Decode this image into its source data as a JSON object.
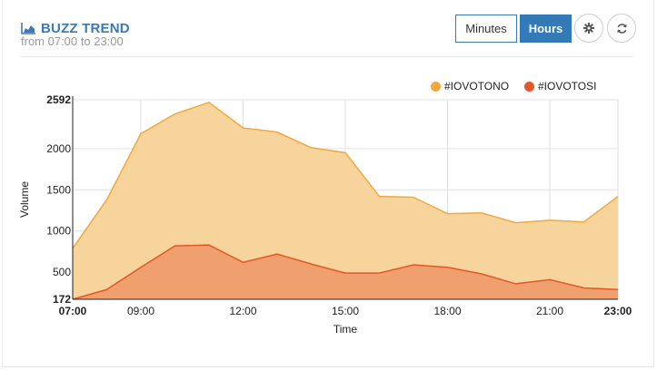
{
  "header": {
    "title": "BUZZ TREND",
    "subtitle": "from 07:00 to 23:00"
  },
  "toolbar": {
    "minutes_label": "Minutes",
    "hours_label": "Hours",
    "active": "Hours"
  },
  "colors": {
    "accent": "#337ab7",
    "series_no": "#f0a941",
    "series_no_fill": "#f6d49c",
    "series_si": "#e3582b",
    "series_si_fill": "#ef9c6c"
  },
  "chart_data": {
    "type": "area",
    "xlabel": "Time",
    "ylabel": "Volume",
    "x": [
      "07:00",
      "08:00",
      "09:00",
      "10:00",
      "11:00",
      "12:00",
      "13:00",
      "14:00",
      "15:00",
      "16:00",
      "17:00",
      "18:00",
      "19:00",
      "20:00",
      "21:00",
      "22:00",
      "23:00"
    ],
    "x_tick_labels": [
      "07:00",
      "09:00",
      "12:00",
      "15:00",
      "18:00",
      "21:00",
      "23:00"
    ],
    "y_tick_labels": [
      "172",
      "500",
      "1000",
      "1500",
      "2000",
      "2592"
    ],
    "ylim": [
      172,
      2592
    ],
    "grid": true,
    "legend_position": "top-right",
    "stacked": false,
    "series": [
      {
        "name": "#IOVOTONO",
        "values": [
          790,
          1380,
          2180,
          2420,
          2560,
          2250,
          2200,
          2010,
          1950,
          1420,
          1410,
          1210,
          1220,
          1100,
          1130,
          1110,
          1420
        ]
      },
      {
        "name": "#IOVOTOSI",
        "values": [
          172,
          290,
          560,
          820,
          830,
          620,
          720,
          600,
          490,
          490,
          590,
          560,
          480,
          360,
          410,
          310,
          290
        ]
      }
    ]
  }
}
